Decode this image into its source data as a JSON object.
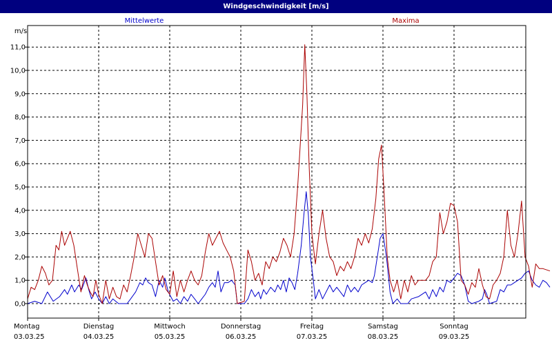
{
  "window": {
    "title": "Windgeschwindigkeit [m/s]"
  },
  "colors": {
    "mean": "#0000cc",
    "max": "#aa0000",
    "grid": "#000000",
    "background": "#ffffff",
    "titlebar": "#00007f"
  },
  "chart_data": {
    "type": "line",
    "ylabel": "m/s",
    "ylim": [
      0,
      12
    ],
    "yticks": [
      "0,0",
      "1,0",
      "2,0",
      "3,0",
      "4,0",
      "5,0",
      "6,0",
      "7,0",
      "8,0",
      "9,0",
      "10,0",
      "11,0"
    ],
    "grid": true,
    "xdays": [
      {
        "day": "Montag",
        "date": "03.03.25"
      },
      {
        "day": "Dienstag",
        "date": "04.03.25"
      },
      {
        "day": "Mittwoch",
        "date": "05.03.25"
      },
      {
        "day": "Donnerstag",
        "date": "06.03.25"
      },
      {
        "day": "Freitag",
        "date": "07.03.25"
      },
      {
        "day": "Samstag",
        "date": "08.03.25"
      },
      {
        "day": "Sonntag",
        "date": "09.03.25"
      }
    ],
    "x_unit": "days since 03.03.25 00:00",
    "series": [
      {
        "name": "Mittelwerte",
        "color": "#0000cc",
        "points": [
          [
            0.0,
            0.0
          ],
          [
            0.1,
            0.1
          ],
          [
            0.2,
            0.0
          ],
          [
            0.28,
            0.5
          ],
          [
            0.36,
            0.1
          ],
          [
            0.45,
            0.3
          ],
          [
            0.52,
            0.6
          ],
          [
            0.56,
            0.4
          ],
          [
            0.62,
            0.8
          ],
          [
            0.66,
            0.5
          ],
          [
            0.72,
            0.8
          ],
          [
            0.76,
            0.6
          ],
          [
            0.82,
            1.1
          ],
          [
            0.86,
            0.6
          ],
          [
            0.9,
            0.2
          ],
          [
            0.95,
            0.5
          ],
          [
            1.0,
            0.2
          ],
          [
            1.05,
            0.0
          ],
          [
            1.1,
            0.3
          ],
          [
            1.15,
            0.0
          ],
          [
            1.2,
            0.2
          ],
          [
            1.28,
            0.0
          ],
          [
            1.4,
            0.0
          ],
          [
            1.45,
            0.2
          ],
          [
            1.52,
            0.5
          ],
          [
            1.58,
            0.9
          ],
          [
            1.62,
            0.8
          ],
          [
            1.66,
            1.1
          ],
          [
            1.7,
            0.9
          ],
          [
            1.75,
            0.8
          ],
          [
            1.8,
            0.3
          ],
          [
            1.85,
            1.0
          ],
          [
            1.9,
            0.7
          ],
          [
            1.93,
            1.1
          ],
          [
            1.98,
            0.5
          ],
          [
            2.05,
            0.1
          ],
          [
            2.1,
            0.2
          ],
          [
            2.15,
            0.0
          ],
          [
            2.2,
            0.3
          ],
          [
            2.25,
            0.1
          ],
          [
            2.3,
            0.4
          ],
          [
            2.35,
            0.2
          ],
          [
            2.4,
            0.0
          ],
          [
            2.45,
            0.2
          ],
          [
            2.5,
            0.4
          ],
          [
            2.55,
            0.7
          ],
          [
            2.6,
            0.9
          ],
          [
            2.64,
            0.7
          ],
          [
            2.68,
            1.4
          ],
          [
            2.72,
            0.5
          ],
          [
            2.77,
            0.9
          ],
          [
            2.82,
            0.9
          ],
          [
            2.87,
            1.0
          ],
          [
            2.92,
            0.8
          ],
          [
            2.95,
            0.0
          ],
          [
            3.05,
            0.0
          ],
          [
            3.1,
            0.2
          ],
          [
            3.15,
            0.6
          ],
          [
            3.2,
            0.3
          ],
          [
            3.25,
            0.5
          ],
          [
            3.28,
            0.2
          ],
          [
            3.32,
            0.6
          ],
          [
            3.36,
            0.4
          ],
          [
            3.42,
            0.7
          ],
          [
            3.48,
            0.5
          ],
          [
            3.52,
            0.8
          ],
          [
            3.56,
            0.6
          ],
          [
            3.6,
            1.0
          ],
          [
            3.64,
            0.5
          ],
          [
            3.68,
            1.1
          ],
          [
            3.72,
            0.9
          ],
          [
            3.76,
            0.6
          ],
          [
            3.8,
            1.3
          ],
          [
            3.85,
            2.5
          ],
          [
            3.89,
            3.9
          ],
          [
            3.92,
            4.8
          ],
          [
            3.95,
            3.8
          ],
          [
            3.98,
            2.0
          ],
          [
            4.02,
            1.0
          ],
          [
            4.05,
            0.2
          ],
          [
            4.1,
            0.6
          ],
          [
            4.15,
            0.2
          ],
          [
            4.2,
            0.5
          ],
          [
            4.25,
            0.8
          ],
          [
            4.3,
            0.5
          ],
          [
            4.35,
            0.7
          ],
          [
            4.4,
            0.5
          ],
          [
            4.45,
            0.3
          ],
          [
            4.5,
            0.8
          ],
          [
            4.55,
            0.5
          ],
          [
            4.6,
            0.7
          ],
          [
            4.65,
            0.5
          ],
          [
            4.7,
            0.8
          ],
          [
            4.75,
            0.9
          ],
          [
            4.8,
            1.0
          ],
          [
            4.85,
            0.9
          ],
          [
            4.88,
            1.2
          ],
          [
            4.92,
            2.0
          ],
          [
            4.96,
            2.8
          ],
          [
            5.0,
            3.0
          ],
          [
            5.05,
            2.0
          ],
          [
            5.1,
            0.5
          ],
          [
            5.14,
            0.0
          ],
          [
            5.2,
            0.2
          ],
          [
            5.25,
            0.0
          ],
          [
            5.35,
            0.0
          ],
          [
            5.4,
            0.2
          ],
          [
            5.5,
            0.3
          ],
          [
            5.6,
            0.5
          ],
          [
            5.65,
            0.2
          ],
          [
            5.7,
            0.6
          ],
          [
            5.75,
            0.3
          ],
          [
            5.8,
            0.7
          ],
          [
            5.85,
            0.5
          ],
          [
            5.9,
            1.0
          ],
          [
            5.95,
            0.9
          ],
          [
            6.0,
            1.1
          ],
          [
            6.05,
            1.3
          ],
          [
            6.1,
            1.2
          ],
          [
            6.15,
            0.8
          ],
          [
            6.2,
            0.1
          ],
          [
            6.25,
            0.0
          ],
          [
            6.35,
            0.1
          ],
          [
            6.4,
            0.2
          ],
          [
            6.43,
            0.6
          ],
          [
            6.46,
            0.4
          ],
          [
            6.5,
            0.0
          ],
          [
            6.6,
            0.1
          ],
          [
            6.65,
            0.6
          ],
          [
            6.7,
            0.5
          ],
          [
            6.75,
            0.8
          ],
          [
            6.8,
            0.8
          ],
          [
            6.85,
            0.9
          ],
          [
            6.9,
            1.0
          ],
          [
            6.95,
            1.1
          ],
          [
            7.0,
            1.3
          ],
          [
            7.05,
            1.4
          ],
          [
            7.1,
            1.0
          ],
          [
            7.15,
            0.8
          ],
          [
            7.2,
            0.7
          ],
          [
            7.25,
            1.0
          ],
          [
            7.3,
            0.9
          ],
          [
            7.35,
            0.7
          ]
        ]
      },
      {
        "name": "Maxima",
        "color": "#aa0000",
        "points": [
          [
            0.0,
            0.2
          ],
          [
            0.05,
            0.7
          ],
          [
            0.1,
            0.6
          ],
          [
            0.15,
            1.0
          ],
          [
            0.2,
            1.6
          ],
          [
            0.25,
            1.3
          ],
          [
            0.3,
            0.8
          ],
          [
            0.35,
            1.0
          ],
          [
            0.4,
            2.5
          ],
          [
            0.44,
            2.3
          ],
          [
            0.48,
            3.1
          ],
          [
            0.52,
            2.5
          ],
          [
            0.56,
            2.8
          ],
          [
            0.6,
            3.1
          ],
          [
            0.65,
            2.5
          ],
          [
            0.7,
            1.5
          ],
          [
            0.75,
            0.5
          ],
          [
            0.8,
            1.2
          ],
          [
            0.84,
            0.8
          ],
          [
            0.88,
            0.5
          ],
          [
            0.92,
            0.3
          ],
          [
            0.96,
            1.0
          ],
          [
            1.0,
            0.4
          ],
          [
            1.05,
            0.0
          ],
          [
            1.1,
            1.0
          ],
          [
            1.15,
            0.2
          ],
          [
            1.2,
            0.7
          ],
          [
            1.25,
            0.3
          ],
          [
            1.3,
            0.2
          ],
          [
            1.35,
            0.8
          ],
          [
            1.4,
            0.5
          ],
          [
            1.45,
            1.2
          ],
          [
            1.5,
            2.0
          ],
          [
            1.55,
            3.0
          ],
          [
            1.6,
            2.5
          ],
          [
            1.65,
            2.0
          ],
          [
            1.7,
            3.0
          ],
          [
            1.75,
            2.8
          ],
          [
            1.8,
            1.8
          ],
          [
            1.85,
            0.8
          ],
          [
            1.9,
            1.2
          ],
          [
            1.95,
            0.6
          ],
          [
            2.0,
            0.4
          ],
          [
            2.05,
            1.4
          ],
          [
            2.1,
            0.3
          ],
          [
            2.15,
            1.0
          ],
          [
            2.2,
            0.5
          ],
          [
            2.25,
            1.0
          ],
          [
            2.3,
            1.4
          ],
          [
            2.35,
            1.0
          ],
          [
            2.4,
            0.8
          ],
          [
            2.45,
            1.2
          ],
          [
            2.5,
            2.2
          ],
          [
            2.55,
            3.0
          ],
          [
            2.6,
            2.5
          ],
          [
            2.65,
            2.8
          ],
          [
            2.7,
            3.1
          ],
          [
            2.75,
            2.6
          ],
          [
            2.8,
            2.3
          ],
          [
            2.85,
            2.0
          ],
          [
            2.9,
            1.4
          ],
          [
            2.95,
            0.0
          ],
          [
            3.05,
            0.1
          ],
          [
            3.1,
            2.3
          ],
          [
            3.15,
            1.8
          ],
          [
            3.2,
            1.0
          ],
          [
            3.25,
            1.3
          ],
          [
            3.3,
            0.8
          ],
          [
            3.35,
            1.8
          ],
          [
            3.4,
            1.5
          ],
          [
            3.45,
            2.0
          ],
          [
            3.5,
            1.8
          ],
          [
            3.55,
            2.2
          ],
          [
            3.6,
            2.8
          ],
          [
            3.65,
            2.5
          ],
          [
            3.7,
            2.0
          ],
          [
            3.75,
            3.0
          ],
          [
            3.8,
            5.0
          ],
          [
            3.83,
            6.5
          ],
          [
            3.87,
            8.5
          ],
          [
            3.9,
            11.1
          ],
          [
            3.93,
            9.0
          ],
          [
            3.96,
            6.0
          ],
          [
            4.0,
            3.0
          ],
          [
            4.05,
            1.7
          ],
          [
            4.1,
            3.0
          ],
          [
            4.15,
            4.0
          ],
          [
            4.2,
            2.8
          ],
          [
            4.25,
            2.0
          ],
          [
            4.3,
            1.8
          ],
          [
            4.35,
            1.2
          ],
          [
            4.4,
            1.6
          ],
          [
            4.45,
            1.4
          ],
          [
            4.5,
            1.8
          ],
          [
            4.55,
            1.5
          ],
          [
            4.6,
            2.0
          ],
          [
            4.65,
            2.8
          ],
          [
            4.7,
            2.5
          ],
          [
            4.75,
            3.0
          ],
          [
            4.8,
            2.6
          ],
          [
            4.85,
            3.2
          ],
          [
            4.9,
            4.5
          ],
          [
            4.94,
            6.2
          ],
          [
            4.98,
            6.8
          ],
          [
            5.02,
            4.5
          ],
          [
            5.06,
            2.0
          ],
          [
            5.1,
            1.0
          ],
          [
            5.15,
            0.5
          ],
          [
            5.2,
            1.0
          ],
          [
            5.25,
            0.2
          ],
          [
            5.3,
            1.0
          ],
          [
            5.35,
            0.5
          ],
          [
            5.4,
            1.2
          ],
          [
            5.45,
            0.8
          ],
          [
            5.5,
            1.0
          ],
          [
            5.55,
            1.0
          ],
          [
            5.6,
            1.0
          ],
          [
            5.65,
            1.2
          ],
          [
            5.7,
            1.8
          ],
          [
            5.75,
            2.0
          ],
          [
            5.8,
            3.9
          ],
          [
            5.85,
            3.0
          ],
          [
            5.9,
            3.5
          ],
          [
            5.95,
            4.3
          ],
          [
            6.0,
            4.2
          ],
          [
            6.05,
            3.5
          ],
          [
            6.1,
            1.0
          ],
          [
            6.15,
            0.8
          ],
          [
            6.2,
            0.4
          ],
          [
            6.25,
            0.9
          ],
          [
            6.3,
            0.7
          ],
          [
            6.35,
            1.5
          ],
          [
            6.4,
            0.8
          ],
          [
            6.45,
            0.3
          ],
          [
            6.5,
            0.2
          ],
          [
            6.55,
            0.8
          ],
          [
            6.6,
            1.0
          ],
          [
            6.65,
            1.3
          ],
          [
            6.7,
            2.0
          ],
          [
            6.75,
            4.0
          ],
          [
            6.8,
            2.5
          ],
          [
            6.85,
            2.0
          ],
          [
            6.9,
            3.0
          ],
          [
            6.95,
            4.4
          ],
          [
            7.0,
            2.0
          ],
          [
            7.05,
            1.6
          ],
          [
            7.1,
            0.7
          ],
          [
            7.15,
            1.7
          ],
          [
            7.2,
            1.5
          ],
          [
            7.25,
            1.5
          ],
          [
            7.35,
            1.4
          ]
        ]
      }
    ]
  }
}
